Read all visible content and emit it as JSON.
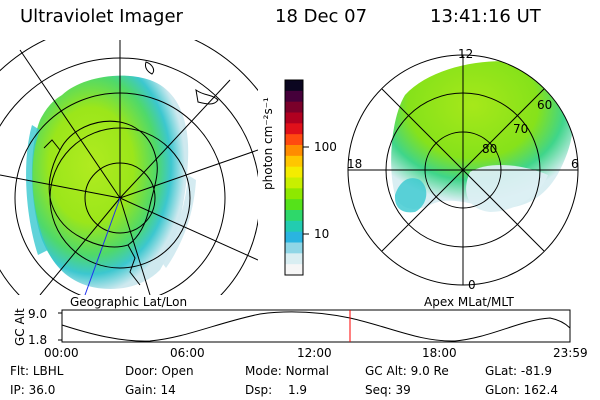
{
  "header": {
    "title": "Ultraviolet Imager",
    "date": "18 Dec 07",
    "time": "13:41:16 UT"
  },
  "panels": {
    "left_label": "Geographic Lat/Lon",
    "right_label": "Apex MLat/MLT",
    "right_mlt": {
      "top": "12",
      "left": "18",
      "right": "6",
      "bottom": "0"
    },
    "right_lat": [
      "60",
      "70",
      "80"
    ]
  },
  "colorbar": {
    "unit": "photon cm⁻²s⁻¹",
    "ticks": [
      "100",
      "10"
    ],
    "colors": [
      "#0b0620",
      "#45003a",
      "#7a002a",
      "#b00020",
      "#e0101a",
      "#ff4a10",
      "#ff8c00",
      "#ffc600",
      "#f4ec00",
      "#c8ef00",
      "#8ee800",
      "#55e21a",
      "#2ed86a",
      "#22ccb0",
      "#2ab4e0",
      "#8fd6e6",
      "#d9eef2",
      "#f6f6f6"
    ]
  },
  "altitude_plot": {
    "ylabel": "GC Alt",
    "yticks": [
      "9.0",
      "1.8"
    ],
    "xticks": [
      "00:00",
      "06:00",
      "12:00",
      "18:00",
      "23:59"
    ],
    "marker_color": "#ff0000"
  },
  "status": {
    "flt_label": "Flt:",
    "flt_value": "LBHL",
    "ip_label": "IP:",
    "ip_value": "36.0",
    "door_label": "Door:",
    "door_value": "Open",
    "gain_label": "Gain:",
    "gain_value": "14",
    "mode_label": "Mode:",
    "mode_value": "Normal",
    "dsp_label": "Dsp:",
    "dsp_value": "1.9",
    "gcalt_label": "GC Alt:",
    "gcalt_value": "9.0 Re",
    "seq_label": "Seq:",
    "seq_value": "39",
    "glat_label": "GLat:",
    "glat_value": "-81.9",
    "glon_label": "GLon:",
    "glon_value": "162.4"
  }
}
